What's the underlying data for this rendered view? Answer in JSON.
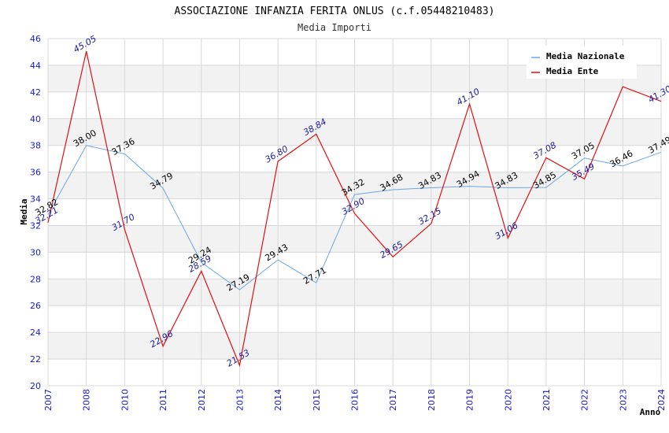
{
  "chart_data": {
    "type": "line",
    "title": "ASSOCIAZIONE INFANZIA FERITA ONLUS (c.f.05448210483)",
    "subtitle": "Media Importi",
    "xlabel": "Anno",
    "ylabel": "Media",
    "ylim": [
      20,
      46
    ],
    "y_ticks": [
      20,
      22,
      24,
      26,
      28,
      30,
      32,
      34,
      36,
      38,
      40,
      42,
      44,
      46
    ],
    "categories": [
      "2007",
      "2008",
      "2010",
      "2011",
      "2012",
      "2013",
      "2014",
      "2015",
      "2016",
      "2017",
      "2018",
      "2019",
      "2020",
      "2021",
      "2022",
      "2023",
      "2024"
    ],
    "grid": true,
    "legend_position": "top-right",
    "series": [
      {
        "name": "Media Nazionale",
        "color": "#6aa8e8",
        "label_color": "#000000",
        "values": [
          32.82,
          38.0,
          37.36,
          34.79,
          29.24,
          27.19,
          29.43,
          27.71,
          34.32,
          34.68,
          34.83,
          34.94,
          34.83,
          34.85,
          37.05,
          36.46,
          37.49
        ],
        "labels": [
          "32.82",
          "38.00",
          "37.36",
          "34.79",
          "29.24",
          "27.19",
          "29.43",
          "27.71",
          "34.32",
          "34.68",
          "34.83",
          "34.94",
          "34.83",
          "34.85",
          "37.05",
          "36.46",
          "37.49"
        ]
      },
      {
        "name": "Media Ente",
        "color": "#e01010",
        "label_color": "#1a1aa0",
        "values": [
          32.21,
          45.05,
          31.7,
          22.96,
          28.59,
          21.53,
          36.8,
          38.84,
          32.9,
          29.65,
          32.15,
          41.1,
          31.06,
          37.08,
          35.49,
          42.4,
          41.3
        ],
        "labels": [
          "32.21",
          "45.05",
          "31.70",
          "22.96",
          "28.59",
          "21.53",
          "36.80",
          "38.84",
          "32.90",
          "29.65",
          "32.15",
          "41.10",
          "31.06",
          "37.08",
          "35.49",
          "",
          "41.30"
        ]
      }
    ]
  }
}
